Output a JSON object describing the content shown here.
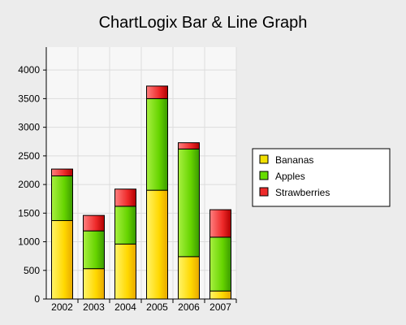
{
  "chart_data": {
    "type": "bar",
    "stacked": true,
    "title": "ChartLogix Bar & Line Graph",
    "xlabel": "",
    "ylabel": "",
    "categories": [
      "2002",
      "2003",
      "2004",
      "2005",
      "2006",
      "2007"
    ],
    "series": [
      {
        "name": "Bananas",
        "values": [
          1370,
          530,
          960,
          1900,
          740,
          140
        ],
        "color": "#f2e000"
      },
      {
        "name": "Apples",
        "values": [
          780,
          660,
          660,
          1600,
          1880,
          940
        ],
        "color": "#66dd00"
      },
      {
        "name": "Strawberries",
        "values": [
          120,
          270,
          300,
          220,
          110,
          480
        ],
        "color": "#ee2a2a"
      }
    ],
    "ylim": [
      0,
      4400
    ],
    "yticks": [
      0,
      500,
      1000,
      1500,
      2000,
      2500,
      3000,
      3500,
      4000
    ],
    "grid": true,
    "legend_position": "right"
  }
}
